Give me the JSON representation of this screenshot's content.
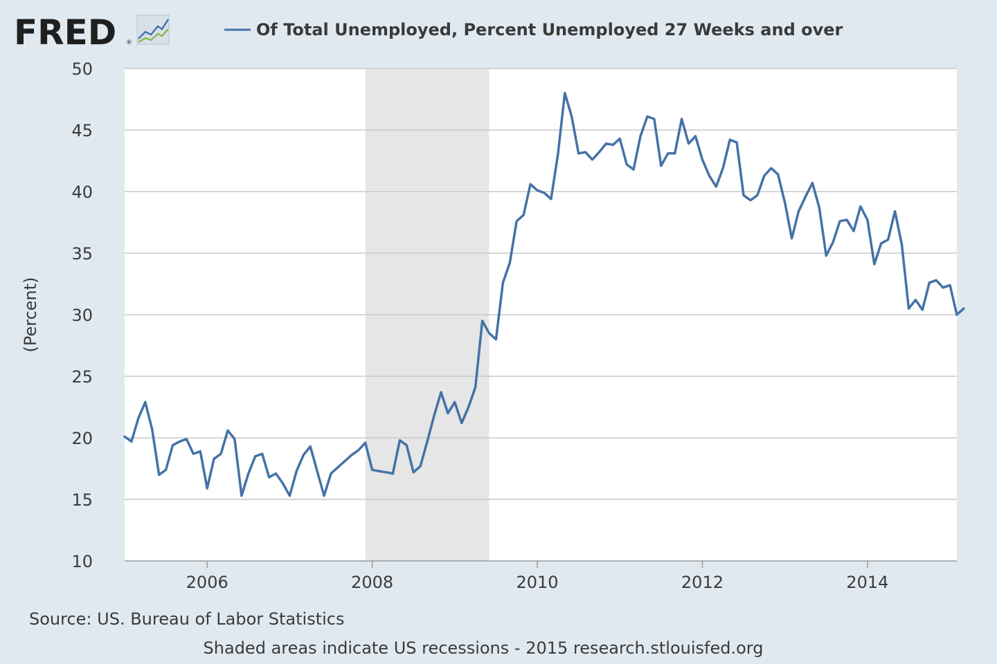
{
  "header": {
    "logo_text": "FRED",
    "logo_mark": "®",
    "logo_icon": "fred-line-chart-icon"
  },
  "chart_data": {
    "type": "line",
    "title": "",
    "xlabel": "",
    "ylabel": "(Percent)",
    "ylim": [
      10,
      50
    ],
    "yticks": [
      10,
      15,
      20,
      25,
      30,
      35,
      40,
      45,
      50
    ],
    "xlim": [
      "2005-01-01",
      "2015-02-01"
    ],
    "xticks": [
      "2006",
      "2008",
      "2010",
      "2012",
      "2014"
    ],
    "grid": true,
    "legend_position": "top-center",
    "colors": {
      "line": "#4572a7",
      "recession": "#e6e6e6",
      "grid": "#c8c8c8",
      "plot_bg": "#ffffff",
      "page_bg": "#e1e9f0"
    },
    "recession": {
      "start": "2007-12-01",
      "end": "2009-06-01"
    },
    "series": [
      {
        "name": "Of Total Unemployed, Percent Unemployed 27 Weeks and over",
        "start": "2005-01",
        "frequency": "monthly",
        "values": [
          20.1,
          19.7,
          21.6,
          22.9,
          20.7,
          17.0,
          17.4,
          19.4,
          19.7,
          19.9,
          18.7,
          18.9,
          15.9,
          18.3,
          18.7,
          20.6,
          19.9,
          15.3,
          17.1,
          18.5,
          18.7,
          16.8,
          17.1,
          16.3,
          15.3,
          17.3,
          18.6,
          19.3,
          17.3,
          15.3,
          17.1,
          17.6,
          18.1,
          18.6,
          19.0,
          19.6,
          17.4,
          17.3,
          17.2,
          17.1,
          19.8,
          19.4,
          17.2,
          17.7,
          19.7,
          21.8,
          23.7,
          22.0,
          22.9,
          21.2,
          22.5,
          24.1,
          29.5,
          28.5,
          28.0,
          32.6,
          34.2,
          37.6,
          38.1,
          40.6,
          40.1,
          39.9,
          39.4,
          43.0,
          48.0,
          46.1,
          43.1,
          43.2,
          42.6,
          43.2,
          43.9,
          43.8,
          44.3,
          42.2,
          41.8,
          44.5,
          46.1,
          45.9,
          42.1,
          43.1,
          43.1,
          45.9,
          43.9,
          44.5,
          42.6,
          41.3,
          40.4,
          41.9,
          44.2,
          44.0,
          39.7,
          39.3,
          39.7,
          41.3,
          41.9,
          41.4,
          39.1,
          36.2,
          38.4,
          39.6,
          40.7,
          38.7,
          34.8,
          35.9,
          37.6,
          37.7,
          36.8,
          38.8,
          37.7,
          34.1,
          35.8,
          36.1,
          38.4,
          35.7,
          30.5,
          31.2,
          30.4,
          32.6,
          32.8,
          32.2,
          32.4,
          30.0,
          30.5
        ]
      }
    ]
  },
  "footer": {
    "source": "Source: US. Bureau of Labor Statistics",
    "note": "Shaded areas indicate US recessions - 2015 research.stlouisfed.org"
  }
}
